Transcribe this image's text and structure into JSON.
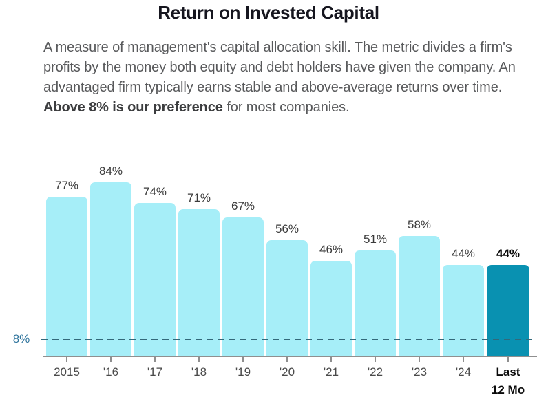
{
  "page": {
    "title": "Return on Invested Capital",
    "description": {
      "part1": "A measure of management's capital allocation skill. The metric divides a firm's profits by the money both equity and debt holders have given the company. An advantaged firm typically earns stable and above-average returns over time. ",
      "bold": "Above 8% is our preference",
      "part3": " for most companies."
    }
  },
  "chart_data": {
    "type": "bar",
    "title": "Return on Invested Capital",
    "categories": [
      "2015",
      "'16",
      "'17",
      "'18",
      "'19",
      "'20",
      "'21",
      "'22",
      "'23",
      "'24",
      "Last 12 Mo"
    ],
    "values": [
      77,
      84,
      74,
      71,
      67,
      56,
      46,
      51,
      58,
      44,
      44
    ],
    "value_labels": [
      "77%",
      "84%",
      "74%",
      "71%",
      "67%",
      "56%",
      "46%",
      "51%",
      "58%",
      "44%",
      "44%"
    ],
    "highlight_index": 10,
    "reference_line": {
      "value": 8,
      "label": "8%",
      "style": "dashed"
    },
    "ylim": [
      0,
      100
    ],
    "legend": "none",
    "grid": "off",
    "colors": {
      "bar": "#A6EEF8",
      "highlight_bar": "#0991B1",
      "reference_line": "#33687A",
      "reference_label": "#2D739C",
      "axis": "#8F8F8F",
      "value_label": "#3B3B3B",
      "highlight_value_label": "#0A0A0A",
      "axis_label": "#4A4A4A",
      "highlight_axis_label": "#0A0A0A"
    }
  }
}
